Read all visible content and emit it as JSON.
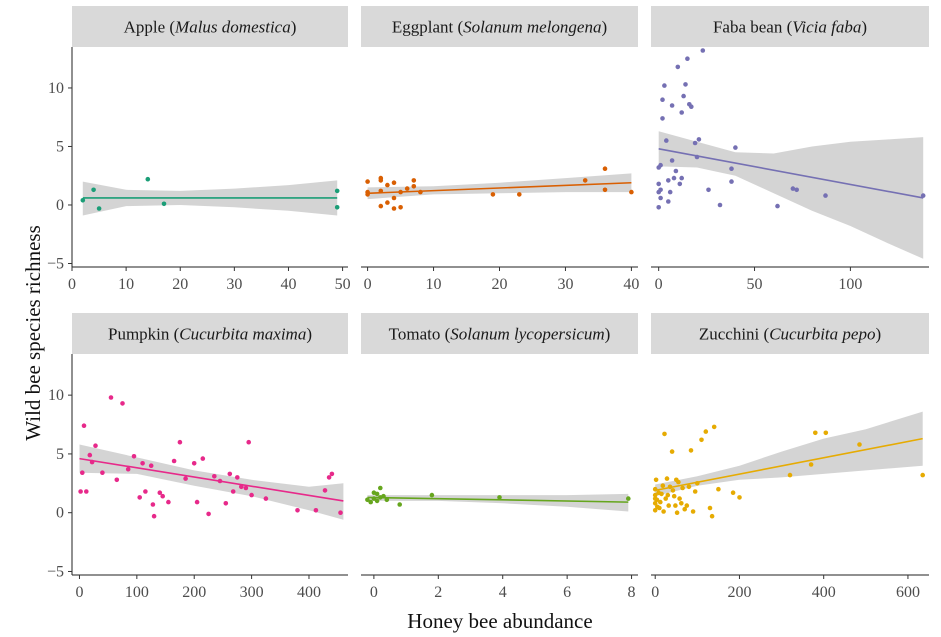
{
  "chart_data": {
    "type": "scatter",
    "xlabel": "Honey bee abundance",
    "ylabel": "Wild bee species richness",
    "ylim": [
      -5.3,
      13.5
    ],
    "y_ticks": [
      -5,
      0,
      5,
      10
    ],
    "y_tick_labels": [
      "−5",
      "0",
      "5",
      "10"
    ],
    "grid": false,
    "band_color": "#cccccc",
    "strip_color": "#d9d9d9",
    "panels": [
      {
        "name": "Apple",
        "species": "Malus domestica",
        "color": "#1b9e77",
        "xlim": [
          0,
          51
        ],
        "x_ticks": [
          0,
          10,
          20,
          30,
          40,
          50
        ],
        "x_tick_labels": [
          "0",
          "10",
          "20",
          "30",
          "40",
          "50"
        ],
        "points": [
          [
            2,
            0.4
          ],
          [
            4,
            1.3
          ],
          [
            5,
            -0.3
          ],
          [
            14,
            2.2
          ],
          [
            17,
            0.1
          ],
          [
            49,
            1.2
          ],
          [
            49,
            -0.2
          ]
        ],
        "fit": {
          "x": [
            2,
            49
          ],
          "y": [
            0.6,
            0.6
          ]
        },
        "band": {
          "x": [
            2,
            10,
            20,
            30,
            40,
            49
          ],
          "lower": [
            -0.9,
            -0.1,
            0.0,
            -0.2,
            -0.5,
            -0.9
          ],
          "upper": [
            2.0,
            1.3,
            1.2,
            1.4,
            1.7,
            2.1
          ]
        }
      },
      {
        "name": "Eggplant",
        "species": "Solanum melongena",
        "color": "#d95f02",
        "xlim": [
          -1,
          41
        ],
        "x_ticks": [
          0,
          10,
          20,
          30,
          40
        ],
        "x_tick_labels": [
          "0",
          "10",
          "20",
          "30",
          "40"
        ],
        "points": [
          [
            0,
            2.0
          ],
          [
            0,
            1.1
          ],
          [
            0,
            0.9
          ],
          [
            2,
            2.1
          ],
          [
            2,
            2.3
          ],
          [
            2,
            1.2
          ],
          [
            2,
            -0.1
          ],
          [
            3,
            0.2
          ],
          [
            3,
            1.7
          ],
          [
            4,
            -0.3
          ],
          [
            4,
            1.9
          ],
          [
            4,
            0.6
          ],
          [
            5,
            1.1
          ],
          [
            5,
            -0.2
          ],
          [
            6,
            1.4
          ],
          [
            7,
            2.1
          ],
          [
            7,
            1.6
          ],
          [
            8,
            1.1
          ],
          [
            19,
            0.9
          ],
          [
            23,
            0.9
          ],
          [
            33,
            2.1
          ],
          [
            36,
            3.1
          ],
          [
            36,
            1.3
          ],
          [
            40,
            1.1
          ]
        ],
        "fit": {
          "x": [
            0,
            40
          ],
          "y": [
            1.0,
            1.9
          ]
        },
        "band": {
          "x": [
            0,
            10,
            20,
            30,
            40
          ],
          "lower": [
            0.5,
            0.9,
            1.0,
            1.1,
            1.1
          ],
          "upper": [
            1.5,
            1.6,
            1.9,
            2.3,
            2.7
          ]
        }
      },
      {
        "name": "Faba bean",
        "species": "Vicia faba",
        "color": "#7570b3",
        "xlim": [
          -4,
          141
        ],
        "x_ticks": [
          0,
          50,
          100
        ],
        "x_tick_labels": [
          "0",
          "50",
          "100"
        ],
        "points": [
          [
            0,
            3.2
          ],
          [
            0,
            1.8
          ],
          [
            0,
            1.1
          ],
          [
            0,
            -0.2
          ],
          [
            1,
            3.4
          ],
          [
            1,
            0.6
          ],
          [
            1,
            1.3
          ],
          [
            2,
            7.4
          ],
          [
            2,
            9.0
          ],
          [
            3,
            10.2
          ],
          [
            4,
            5.5
          ],
          [
            5,
            2.1
          ],
          [
            5,
            0.3
          ],
          [
            6,
            1.1
          ],
          [
            7,
            3.8
          ],
          [
            7,
            8.5
          ],
          [
            8,
            2.3
          ],
          [
            9,
            2.9
          ],
          [
            10,
            11.8
          ],
          [
            11,
            1.8
          ],
          [
            12,
            7.9
          ],
          [
            12,
            2.3
          ],
          [
            13,
            9.3
          ],
          [
            14,
            10.3
          ],
          [
            15,
            12.5
          ],
          [
            16,
            8.6
          ],
          [
            17,
            8.4
          ],
          [
            19,
            5.3
          ],
          [
            20,
            4.1
          ],
          [
            21,
            5.6
          ],
          [
            23,
            13.2
          ],
          [
            26,
            1.3
          ],
          [
            32,
            0.0
          ],
          [
            38,
            3.1
          ],
          [
            38,
            2.0
          ],
          [
            40,
            4.9
          ],
          [
            62,
            -0.1
          ],
          [
            70,
            1.4
          ],
          [
            72,
            1.3
          ],
          [
            87,
            0.8
          ],
          [
            138,
            0.8
          ]
        ],
        "fit": {
          "x": [
            0,
            138
          ],
          "y": [
            4.8,
            0.6
          ]
        },
        "band": {
          "x": [
            0,
            20,
            40,
            60,
            80,
            100,
            120,
            138
          ],
          "lower": [
            3.3,
            3.2,
            2.5,
            1.0,
            -0.5,
            -1.8,
            -3.3,
            -4.6
          ],
          "upper": [
            6.3,
            5.4,
            4.5,
            4.4,
            5.0,
            5.4,
            5.6,
            5.8
          ]
        }
      },
      {
        "name": "Pumpkin",
        "species": "Cucurbita maxima",
        "color": "#e7298a",
        "xlim": [
          -13,
          468
        ],
        "x_ticks": [
          0,
          100,
          200,
          300,
          400
        ],
        "x_tick_labels": [
          "0",
          "100",
          "200",
          "300",
          "400"
        ],
        "points": [
          [
            2,
            1.8
          ],
          [
            5,
            3.4
          ],
          [
            8,
            7.4
          ],
          [
            12,
            1.8
          ],
          [
            18,
            4.9
          ],
          [
            22,
            4.3
          ],
          [
            28,
            5.7
          ],
          [
            40,
            3.4
          ],
          [
            55,
            9.8
          ],
          [
            65,
            2.8
          ],
          [
            75,
            9.3
          ],
          [
            85,
            3.7
          ],
          [
            95,
            4.8
          ],
          [
            105,
            1.3
          ],
          [
            110,
            4.2
          ],
          [
            115,
            1.8
          ],
          [
            125,
            4.0
          ],
          [
            128,
            0.7
          ],
          [
            130,
            -0.3
          ],
          [
            140,
            1.7
          ],
          [
            145,
            1.4
          ],
          [
            155,
            0.9
          ],
          [
            165,
            4.4
          ],
          [
            175,
            6.0
          ],
          [
            185,
            2.9
          ],
          [
            200,
            4.2
          ],
          [
            205,
            0.9
          ],
          [
            215,
            4.6
          ],
          [
            225,
            -0.1
          ],
          [
            235,
            3.1
          ],
          [
            245,
            2.7
          ],
          [
            255,
            0.8
          ],
          [
            262,
            3.3
          ],
          [
            268,
            1.8
          ],
          [
            275,
            3.0
          ],
          [
            282,
            2.2
          ],
          [
            290,
            2.1
          ],
          [
            295,
            6.0
          ],
          [
            300,
            1.5
          ],
          [
            325,
            1.2
          ],
          [
            380,
            0.2
          ],
          [
            412,
            0.2
          ],
          [
            428,
            1.9
          ],
          [
            435,
            3.0
          ],
          [
            440,
            3.3
          ],
          [
            455,
            0.0
          ]
        ],
        "fit": {
          "x": [
            0,
            460
          ],
          "y": [
            4.6,
            1.0
          ]
        },
        "band": {
          "x": [
            0,
            100,
            200,
            300,
            400,
            460
          ],
          "lower": [
            3.4,
            3.3,
            2.3,
            1.4,
            0.2,
            -0.6
          ],
          "upper": [
            5.8,
            4.7,
            3.6,
            2.8,
            2.2,
            2.5
          ]
        }
      },
      {
        "name": "Tomato",
        "species": "Solanum lycopersicum",
        "color": "#66a61e",
        "xlim": [
          -0.4,
          8.2
        ],
        "x_ticks": [
          0,
          2,
          4,
          6,
          8
        ],
        "x_tick_labels": [
          "0",
          "2",
          "4",
          "6",
          "8"
        ],
        "points": [
          [
            -0.2,
            1.1
          ],
          [
            -0.1,
            0.9
          ],
          [
            0,
            1.7
          ],
          [
            0,
            1.2
          ],
          [
            0.1,
            1.0
          ],
          [
            0.1,
            1.6
          ],
          [
            0.2,
            2.1
          ],
          [
            0.2,
            1.3
          ],
          [
            0.3,
            1.4
          ],
          [
            0.4,
            1.1
          ],
          [
            0.8,
            0.7
          ],
          [
            1.8,
            1.5
          ],
          [
            3.9,
            1.3
          ],
          [
            7.9,
            1.2
          ]
        ],
        "fit": {
          "x": [
            -0.2,
            7.9
          ],
          "y": [
            1.3,
            0.9
          ]
        },
        "band": {
          "x": [
            -0.2,
            2,
            4,
            6,
            7.9
          ],
          "lower": [
            1.0,
            1.0,
            0.8,
            0.5,
            0.1
          ],
          "upper": [
            1.5,
            1.5,
            1.5,
            1.5,
            1.6
          ]
        }
      },
      {
        "name": "Zucchini",
        "species": "Cucurbita pepo",
        "color": "#e6ab02",
        "xlim": [
          -10,
          650
        ],
        "x_ticks": [
          0,
          200,
          400,
          600
        ],
        "x_tick_labels": [
          "0",
          "200",
          "400",
          "600"
        ],
        "points": [
          [
            0,
            0.8
          ],
          [
            0,
            1.5
          ],
          [
            0,
            1.2
          ],
          [
            0,
            2.0
          ],
          [
            0,
            0.2
          ],
          [
            2,
            2.8
          ],
          [
            4,
            1.1
          ],
          [
            5,
            0.5
          ],
          [
            8,
            1.7
          ],
          [
            10,
            0.4
          ],
          [
            12,
            0.9
          ],
          [
            15,
            1.6
          ],
          [
            18,
            2.3
          ],
          [
            20,
            0.1
          ],
          [
            22,
            6.7
          ],
          [
            25,
            1.2
          ],
          [
            28,
            2.9
          ],
          [
            30,
            1.5
          ],
          [
            32,
            0.6
          ],
          [
            35,
            2.2
          ],
          [
            40,
            5.2
          ],
          [
            42,
            1.9
          ],
          [
            45,
            1.4
          ],
          [
            48,
            0.6
          ],
          [
            50,
            2.8
          ],
          [
            52,
            0.0
          ],
          [
            55,
            2.6
          ],
          [
            58,
            1.2
          ],
          [
            62,
            0.8
          ],
          [
            65,
            2.1
          ],
          [
            70,
            0.3
          ],
          [
            75,
            0.6
          ],
          [
            80,
            2.2
          ],
          [
            85,
            5.3
          ],
          [
            90,
            0.1
          ],
          [
            95,
            1.8
          ],
          [
            100,
            2.5
          ],
          [
            110,
            6.2
          ],
          [
            120,
            6.9
          ],
          [
            130,
            0.4
          ],
          [
            135,
            -0.3
          ],
          [
            140,
            7.3
          ],
          [
            150,
            2.0
          ],
          [
            185,
            1.7
          ],
          [
            200,
            1.3
          ],
          [
            320,
            3.2
          ],
          [
            370,
            4.1
          ],
          [
            380,
            6.8
          ],
          [
            405,
            6.8
          ],
          [
            485,
            5.8
          ],
          [
            635,
            3.2
          ]
        ],
        "fit": {
          "x": [
            0,
            635
          ],
          "y": [
            1.9,
            6.3
          ]
        },
        "band": {
          "x": [
            0,
            100,
            200,
            300,
            400,
            500,
            635
          ],
          "lower": [
            1.4,
            2.3,
            2.8,
            3.0,
            3.3,
            3.6,
            4.0
          ],
          "upper": [
            2.4,
            3.1,
            4.0,
            5.2,
            6.3,
            7.1,
            8.6
          ]
        }
      }
    ]
  }
}
